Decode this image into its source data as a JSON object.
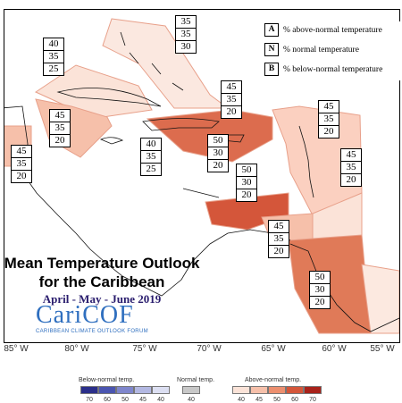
{
  "map": {
    "lon_labels": [
      "85° W",
      "80° W",
      "75° W",
      "70° W",
      "65° W",
      "60° W",
      "55° W"
    ],
    "regions": [
      {
        "id": "bahamas",
        "probabilities": [
          "35",
          "35",
          "30"
        ]
      },
      {
        "id": "cuba",
        "probabilities": [
          "40",
          "35",
          "25"
        ]
      },
      {
        "id": "belize",
        "probabilities": [
          "45",
          "35",
          "20"
        ]
      },
      {
        "id": "cayman",
        "probabilities": [
          "45",
          "35",
          "20"
        ]
      },
      {
        "id": "jamaica",
        "probabilities": [
          "40",
          "35",
          "25"
        ]
      },
      {
        "id": "hispaniola",
        "probabilities": [
          "50",
          "30",
          "20"
        ]
      },
      {
        "id": "turks",
        "probabilities": [
          "45",
          "35",
          "20"
        ]
      },
      {
        "id": "leewards",
        "probabilities": [
          "45",
          "35",
          "20"
        ]
      },
      {
        "id": "windwards",
        "probabilities": [
          "45",
          "35",
          "20"
        ]
      },
      {
        "id": "abc",
        "probabilities": [
          "50",
          "30",
          "20"
        ]
      },
      {
        "id": "trinidad",
        "probabilities": [
          "45",
          "35",
          "20"
        ]
      },
      {
        "id": "guianas",
        "probabilities": [
          "50",
          "30",
          "20"
        ]
      }
    ]
  },
  "legend": {
    "items": [
      {
        "letter": "A",
        "text": "% above-normal temperature"
      },
      {
        "letter": "N",
        "text": "% normal temperature"
      },
      {
        "letter": "B",
        "text": "% below-normal temperature"
      }
    ]
  },
  "title": {
    "line1": "Mean Temperature Outlook",
    "line2": "for the Caribbean",
    "period": "April - May - June 2019"
  },
  "logo": {
    "name": "CariCOF",
    "tagline": "CARIBBEAN CLIMATE OUTLOOK FORUM"
  },
  "scale": {
    "below_label": "Below-normal temp.",
    "normal_label": "Normal temp.",
    "above_label": "Above-normal temp.",
    "below_ticks": [
      "70",
      "60",
      "50",
      "45",
      "40"
    ],
    "normal_tick": "40",
    "above_ticks": [
      "40",
      "45",
      "50",
      "60",
      "70"
    ],
    "below_colors": [
      "#2b2f8a",
      "#4a55b0",
      "#7f86cc",
      "#b3b8e2",
      "#dcdff2"
    ],
    "normal_color": "#c8c8c8",
    "above_colors": [
      "#fbe3d8",
      "#f6c0aa",
      "#ec8f6f",
      "#d4563a",
      "#a8221a"
    ]
  }
}
